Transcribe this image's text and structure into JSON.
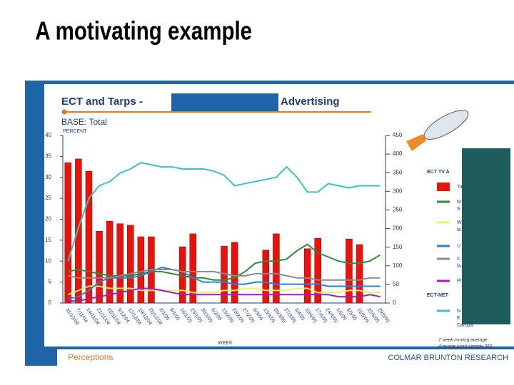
{
  "slide_title": "A motivating example",
  "footer": {
    "left": "Perceptions",
    "right": "COLMAR BRUNTON RESEARCH"
  },
  "legend_heading": "ECT TV A",
  "legend_heading_2": "ECT-NET",
  "legend_fragments": [
    "S",
    "la",
    "fa",
    "E",
    "Campa"
  ],
  "footnote": [
    "7 week moving average",
    "Average point sample 352"
  ],
  "chart_data": {
    "type": "bar_line",
    "title": "ECT and Tarps -",
    "title_end": "Advertising",
    "subtitle": "BASE: Total",
    "y_label": "PERCENT",
    "x_label": "WEEK",
    "categories": [
      "31/10/04",
      "7/11/04",
      "14/11/04",
      "21/11/04",
      "28/11/04",
      "5/12/04",
      "12/12/04",
      "19/12/04",
      "26/12/04",
      "2/1/05",
      "9/1/05",
      "16/1/05",
      "23/1/05",
      "30/1/05",
      "6/2/05",
      "13/2/05",
      "20/2/05",
      "27/2/05",
      "6/3/05",
      "13/3/05",
      "20/3/05",
      "27/3/05",
      "3/4/05",
      "10/4/05",
      "17/4/05",
      "24/4/05",
      "1/5/05",
      "8/5/05",
      "15/5/05",
      "22/5/05",
      "29/5/05"
    ],
    "ylim": [
      0,
      40
    ],
    "yticks": [
      0,
      5,
      10,
      15,
      20,
      25,
      30,
      35,
      40
    ],
    "y2lim": [
      0,
      450
    ],
    "y2ticks": [
      0,
      50,
      100,
      150,
      200,
      250,
      300,
      350,
      400,
      450
    ],
    "series": [
      {
        "name": "Ta",
        "type": "bar",
        "axis": "y2",
        "color": "#e8140c",
        "values": [
          377,
          387,
          354,
          193,
          220,
          213,
          209,
          178,
          178,
          null,
          null,
          151,
          186,
          null,
          null,
          153,
          163,
          null,
          null,
          142,
          186,
          null,
          null,
          146,
          174,
          null,
          null,
          172,
          157,
          null,
          null
        ]
      },
      {
        "name": "M",
        "type": "line",
        "color": "#2e8b3a",
        "values": [
          7.5,
          8,
          7.5,
          7,
          6.5,
          6.5,
          6.5,
          7,
          7.5,
          7.5,
          7,
          6.5,
          6,
          6,
          5.5,
          5.5,
          6,
          7.5,
          9.5,
          10,
          10,
          10.5,
          12.5,
          14,
          12,
          11,
          10,
          9.5,
          9.5,
          10,
          11.5
        ]
      },
      {
        "name": "W",
        "type": "line",
        "color": "#f2ec6a",
        "values": [
          2,
          3,
          4,
          4,
          3.5,
          3.5,
          3.5,
          3,
          3,
          3,
          3,
          3,
          2.5,
          2.5,
          2.5,
          3,
          3,
          3.5,
          3.5,
          3,
          3,
          3,
          3.5,
          3.5,
          2.5,
          2.5,
          2.5,
          3,
          3,
          2.5,
          2.5
        ]
      },
      {
        "name": "U",
        "type": "line",
        "color": "#2f7fd0",
        "values": [
          1,
          1.5,
          3,
          5,
          6,
          6,
          6,
          6.5,
          7.5,
          8.5,
          8,
          7.5,
          6,
          5,
          5,
          5,
          4.5,
          4.5,
          5,
          5,
          4.5,
          4.5,
          4.5,
          4.5,
          4.5,
          4,
          4,
          4,
          4,
          4,
          4
        ]
      },
      {
        "name": "C",
        "type": "line",
        "color": "#8a8a8a",
        "values": [
          6.5,
          6,
          6,
          6,
          6,
          6.5,
          7,
          7.5,
          8,
          8,
          8,
          7.5,
          7.5,
          7.5,
          7.5,
          7,
          6.5,
          6.5,
          7,
          7,
          7,
          6.5,
          6,
          6,
          5.5,
          5.5,
          5.5,
          5.5,
          5.5,
          6,
          6
        ]
      },
      {
        "name": "Pl",
        "type": "line",
        "color": "#a11fb0",
        "values": [
          0.5,
          0.5,
          1,
          1.5,
          2,
          2.5,
          3,
          3.5,
          3.5,
          3,
          2.5,
          2,
          2,
          2,
          2,
          2,
          2,
          2,
          2,
          2,
          2,
          2,
          2,
          2,
          2,
          2,
          1.5,
          1.5,
          1.5,
          2,
          1.5
        ]
      },
      {
        "name": "N",
        "type": "line",
        "color": "#3cc0c0",
        "values": [
          10,
          18,
          25,
          28,
          29,
          31,
          32,
          33.5,
          33,
          32.5,
          32.5,
          32,
          32,
          32,
          31.5,
          30.5,
          28,
          28.5,
          29,
          29.5,
          30,
          32.5,
          30,
          26.5,
          26.5,
          28.5,
          28,
          27.5,
          28,
          28,
          28
        ]
      }
    ]
  }
}
